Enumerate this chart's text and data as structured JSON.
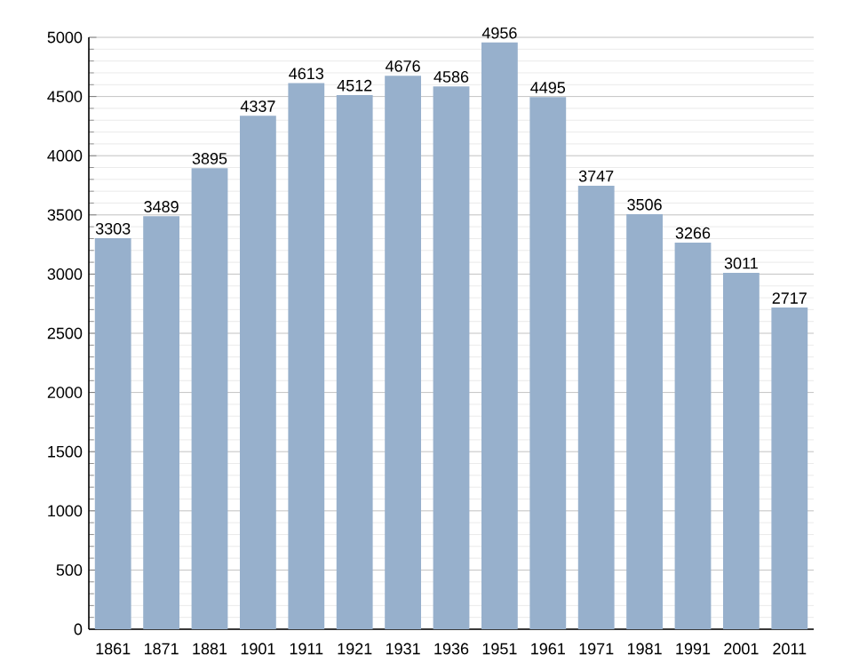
{
  "chart_data": {
    "type": "bar",
    "categories": [
      "1861",
      "1871",
      "1881",
      "1901",
      "1911",
      "1921",
      "1931",
      "1936",
      "1951",
      "1961",
      "1971",
      "1981",
      "1991",
      "2001",
      "2011"
    ],
    "values": [
      3303,
      3489,
      3895,
      4337,
      4613,
      4512,
      4676,
      4586,
      4956,
      4495,
      3747,
      3506,
      3266,
      3011,
      2717
    ],
    "color": "#97b0cc",
    "ylim": [
      0,
      5000
    ],
    "yticks": [
      0,
      500,
      1000,
      1500,
      2000,
      2500,
      3000,
      3500,
      4000,
      4500,
      5000
    ],
    "grid": "y",
    "data_labels": true
  }
}
